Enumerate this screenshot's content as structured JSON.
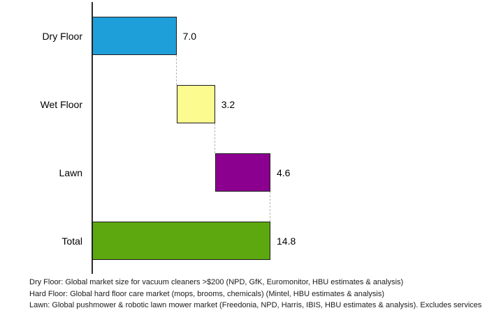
{
  "chart_data": {
    "type": "bar",
    "subtype": "horizontal-waterfall",
    "title": "",
    "xlabel": "",
    "ylabel": "",
    "xlim": [
      0,
      14.8
    ],
    "grid": false,
    "legend": false,
    "categories": [
      "Dry Floor",
      "Wet Floor",
      "Lawn",
      "Total"
    ],
    "values": [
      7.0,
      3.2,
      4.6,
      14.8
    ],
    "rows": [
      {
        "label": "Dry Floor",
        "value": 7.0,
        "value_label": "7.0",
        "color": "#1f9fd9",
        "is_total": false
      },
      {
        "label": "Wet Floor",
        "value": 3.2,
        "value_label": "3.2",
        "color": "#fbfb90",
        "is_total": false
      },
      {
        "label": "Lawn",
        "value": 4.6,
        "value_label": "4.6",
        "color": "#8c0090",
        "is_total": false
      },
      {
        "label": "Total",
        "value": 14.8,
        "value_label": "14.8",
        "color": "#5da80f",
        "is_total": true
      }
    ],
    "axis_color": "#2b2b2b",
    "connector_color": "#b5b5b5",
    "bar_border_color": "#1a1a1a"
  },
  "footnotes": [
    "Dry Floor: Global market size for vacuum cleaners >$200 (NPD, GfK, Euromonitor, HBU estimates & analysis)",
    "Hard Floor: Global hard floor care market (mops, brooms, chemicals) (Mintel, HBU estimates & analysis)",
    "Lawn: Global pushmower & robotic lawn mower market (Freedonia, NPD, Harris, IBIS, HBU estimates & analysis).  Excludes services"
  ]
}
